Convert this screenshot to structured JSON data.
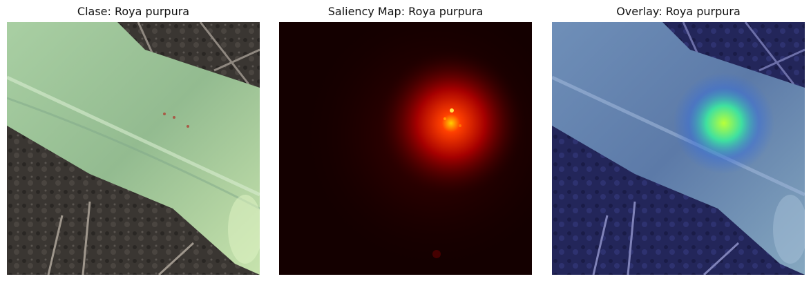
{
  "panels": [
    {
      "title": "Clase: Roya purpura",
      "image": "original-leaf-photo"
    },
    {
      "title": "Saliency Map: Roya purpura",
      "image": "saliency-heatmap"
    },
    {
      "title": "Overlay: Roya purpura",
      "image": "saliency-overlay"
    }
  ],
  "colors": {
    "leaf": "#9fc79a",
    "leaf_shade": "#6f9a80",
    "soil": "#3c3834",
    "saliency_bg": "#160000",
    "saliency_hot": "#ff3a00",
    "overlay_tint": "#2a2f8f",
    "overlay_hot": "#40e080"
  }
}
